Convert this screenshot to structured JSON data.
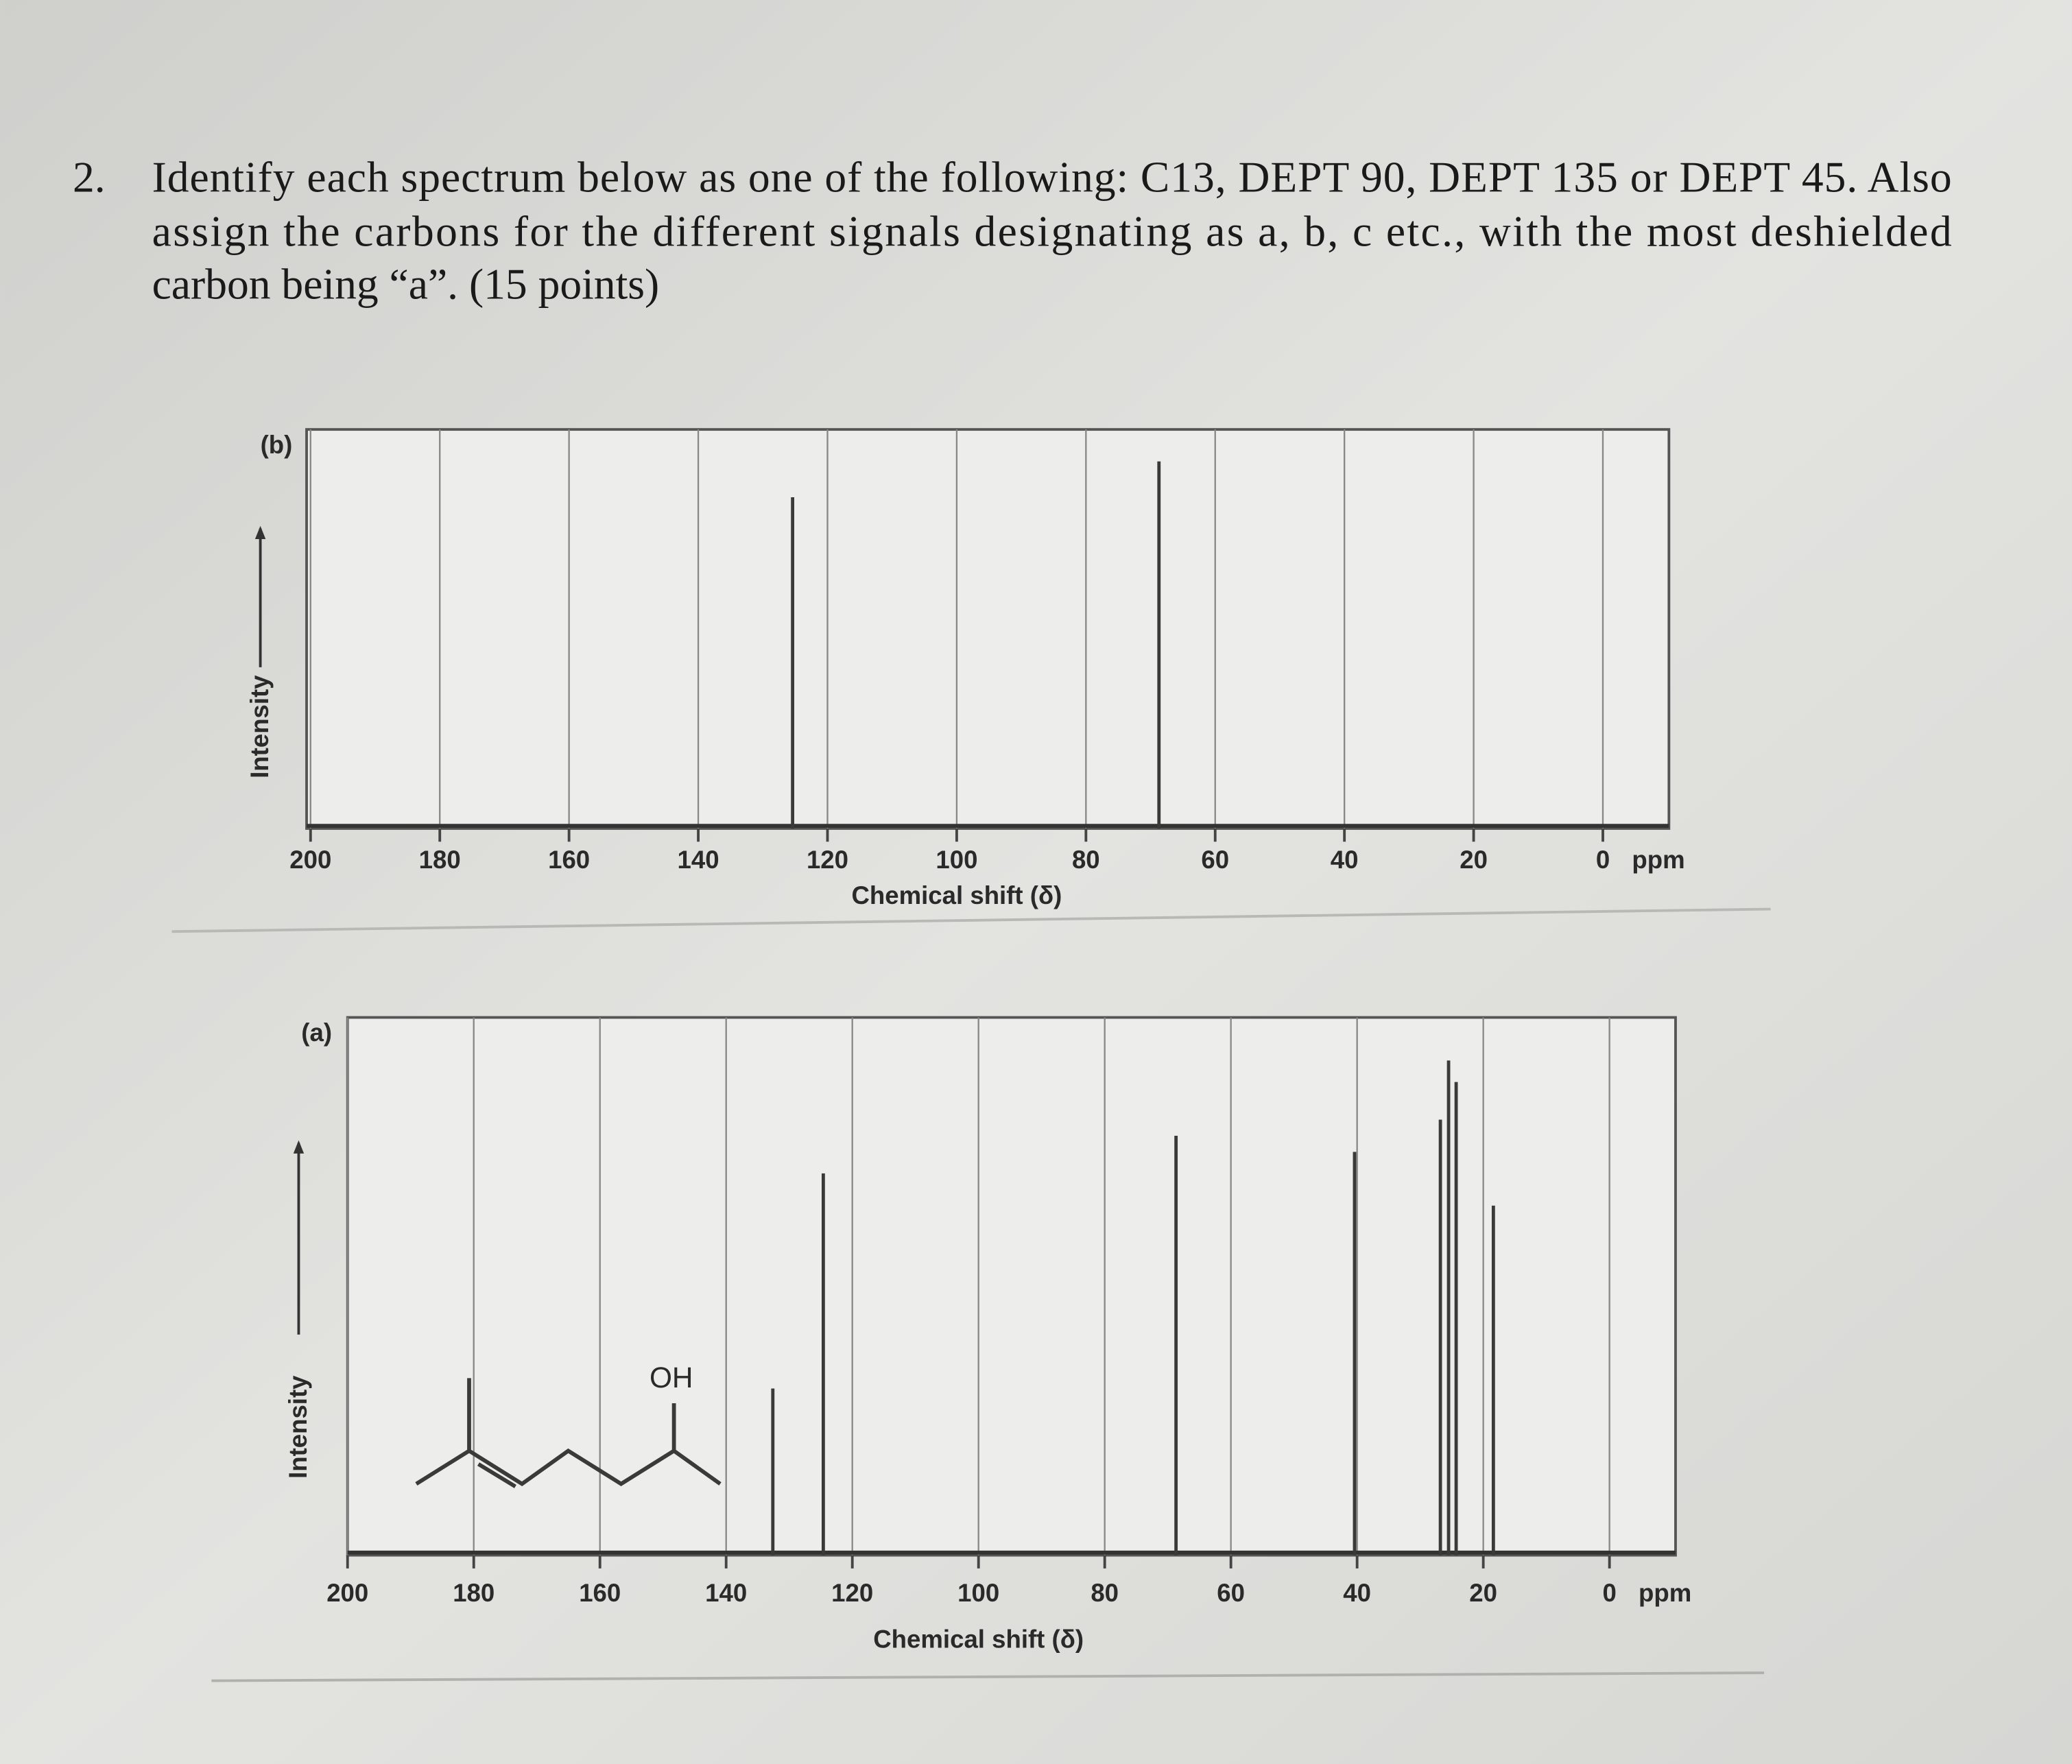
{
  "question": {
    "number": "2.",
    "lines": [
      "Identify each spectrum below as one of the following: C13, DEPT 90, DEPT 135 or DEPT 45. Also",
      "assign the carbons for the different signals designating as a, b, c etc., with the most deshielded",
      "carbon being “a”. (15 points)"
    ]
  },
  "chart_data": [
    {
      "type": "stick",
      "panel_label": "(b)",
      "y_label": "Intensity",
      "x_label": "Chemical shift (δ)",
      "x_unit": "ppm",
      "xlim": [
        200,
        0
      ],
      "xticks": [
        200,
        180,
        160,
        140,
        120,
        100,
        80,
        60,
        40,
        20,
        0
      ],
      "ylim": [
        0,
        100
      ],
      "grid": true,
      "color": "#3a3a3a",
      "x": [
        125.4,
        68.7
      ],
      "values": [
        83,
        92
      ]
    },
    {
      "type": "stick",
      "panel_label": "(a)",
      "y_label": "Intensity",
      "x_label": "Chemical shift (δ)",
      "x_unit": "ppm",
      "structure_label": "OH",
      "xlim": [
        200,
        0
      ],
      "xticks": [
        200,
        180,
        160,
        140,
        120,
        100,
        80,
        60,
        40,
        20,
        0
      ],
      "ylim": [
        0,
        100
      ],
      "grid": true,
      "color": "#3a3a3a",
      "x": [
        132.6,
        124.6,
        68.7,
        40.4,
        26.8,
        25.5,
        24.3,
        18.4
      ],
      "values": [
        31,
        71,
        78,
        75,
        81,
        92,
        88,
        65
      ]
    }
  ]
}
